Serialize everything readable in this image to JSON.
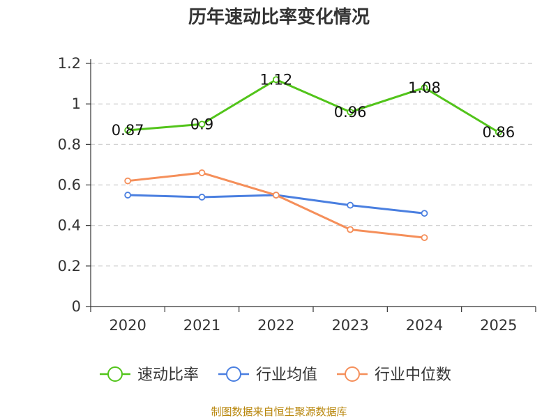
{
  "chart_data": {
    "type": "line",
    "title": "历年速动比率变化情况",
    "categories": [
      "2020",
      "2021",
      "2022",
      "2023",
      "2024",
      "2025"
    ],
    "ylim": [
      0,
      1.2
    ],
    "yticks": [
      0,
      0.2,
      0.4,
      0.6,
      0.8,
      1,
      1.2
    ],
    "ytick_labels": [
      "0",
      "0.2",
      "0.4",
      "0.6",
      "0.8",
      "1",
      "1.2"
    ],
    "grid": true,
    "legend_position": "bottom",
    "series": [
      {
        "name": "速动比率",
        "color": "#52c41a",
        "values": [
          0.87,
          0.9,
          1.12,
          0.96,
          1.08,
          0.86
        ],
        "labels": [
          "0.87",
          "0.9",
          "1.12",
          "0.96",
          "1.08",
          "0.86"
        ]
      },
      {
        "name": "行业均值",
        "color": "#4a7fe0",
        "values": [
          0.55,
          0.54,
          0.55,
          0.5,
          0.46,
          null
        ]
      },
      {
        "name": "行业中位数",
        "color": "#f58f5a",
        "values": [
          0.62,
          0.66,
          0.55,
          0.38,
          0.34,
          null
        ]
      }
    ],
    "source": "制图数据来自恒生聚源数据库"
  }
}
